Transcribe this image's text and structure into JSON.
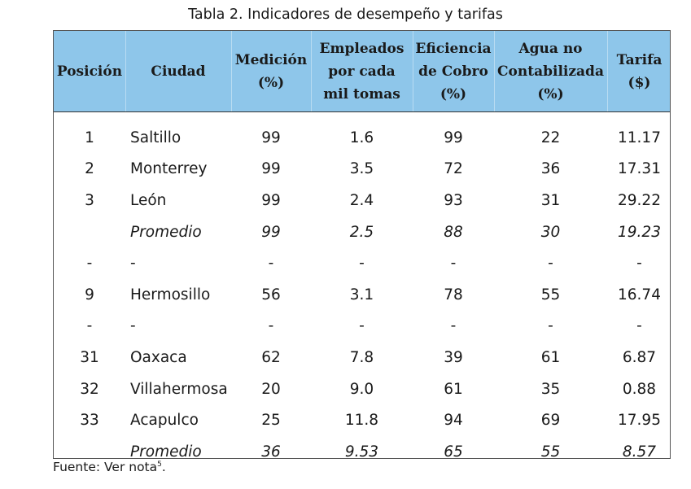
{
  "caption": "Tabla 2. Indicadores de desempeño y tarifas",
  "columns": [
    "Posición",
    "Ciudad",
    "Medición\n(%)",
    "Empleados\npor cada\nmil tomas",
    "Eficiencia\nde Cobro\n(%)",
    "Agua no\nContabilizada\n(%)",
    "Tarifa\n($)"
  ],
  "rows": [
    {
      "cells": [
        "1",
        "Saltillo",
        "99",
        "1.6",
        "99",
        "22",
        "11.17"
      ],
      "italic": false
    },
    {
      "cells": [
        "2",
        "Monterrey",
        "99",
        "3.5",
        "72",
        "36",
        "17.31"
      ],
      "italic": false
    },
    {
      "cells": [
        "3",
        "León",
        "99",
        "2.4",
        "93",
        "31",
        "29.22"
      ],
      "italic": false
    },
    {
      "cells": [
        "",
        "Promedio",
        "99",
        "2.5",
        "88",
        "30",
        "19.23"
      ],
      "italic": true
    },
    {
      "cells": [
        "-",
        "-",
        "-",
        "-",
        "-",
        "-",
        "-"
      ],
      "italic": false
    },
    {
      "cells": [
        "9",
        "Hermosillo",
        "56",
        "3.1",
        "78",
        "55",
        "16.74"
      ],
      "italic": false
    },
    {
      "cells": [
        "-",
        "-",
        "-",
        "-",
        "-",
        "-",
        "-"
      ],
      "italic": false
    },
    {
      "cells": [
        "31",
        "Oaxaca",
        "62",
        "7.8",
        "39",
        "61",
        "6.87"
      ],
      "italic": false
    },
    {
      "cells": [
        "32",
        "Villahermosa",
        "20",
        "9.0",
        "61",
        "35",
        "0.88"
      ],
      "italic": false
    },
    {
      "cells": [
        "33",
        "Acapulco",
        "25",
        "11.8",
        "94",
        "69",
        "17.95"
      ],
      "italic": false
    },
    {
      "cells": [
        "",
        "Promedio",
        "36",
        "9.53",
        "65",
        "55",
        "8.57"
      ],
      "italic": true
    }
  ],
  "source": {
    "text": "Fuente: Ver nota",
    "note": "5",
    "suffix": "."
  },
  "colors": {
    "header_bg": "#8ec6ea"
  }
}
